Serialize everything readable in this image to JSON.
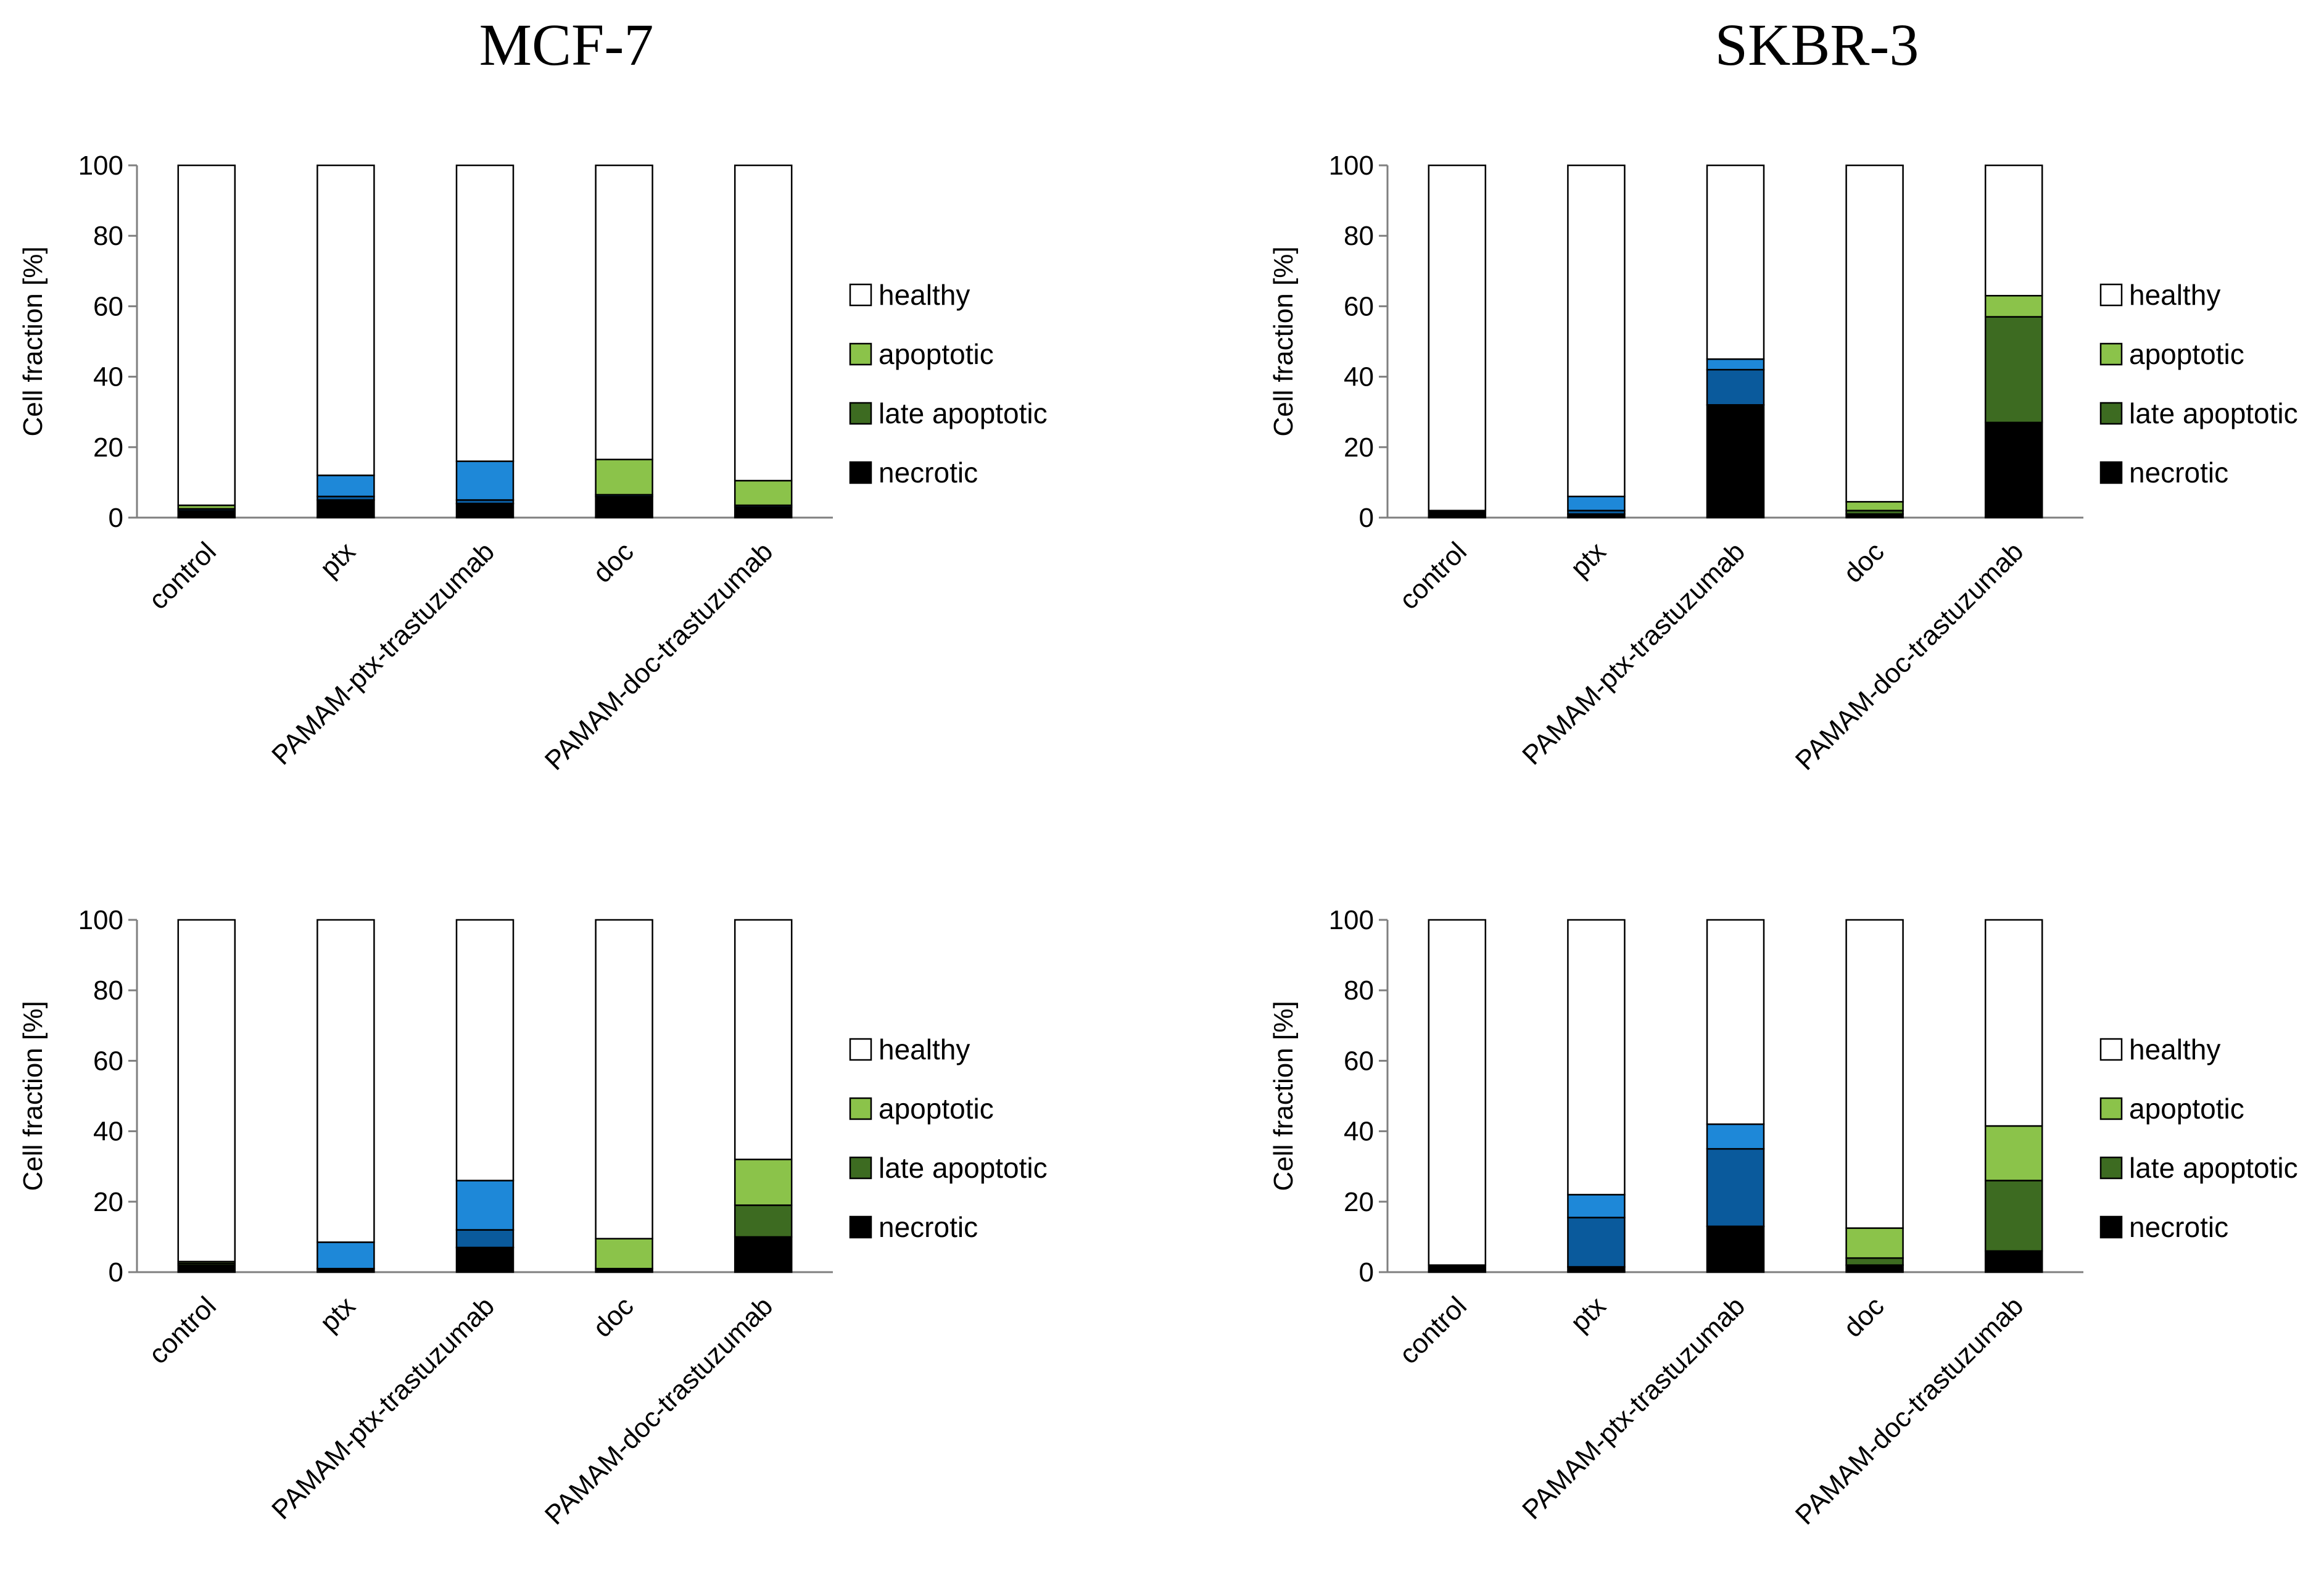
{
  "column_titles": [
    "MCF-7",
    "SKBR-3"
  ],
  "colors": {
    "healthy": "#ffffff",
    "apoptotic": "#8bc34a",
    "late_apoptotic": "#3d6b21",
    "necrotic": "#000000",
    "blue_light": "#1e88d8",
    "blue_dark": "#0a5a9c",
    "axis": "#7f7f7f",
    "outline": "#000000"
  },
  "chart_data": [
    {
      "type": "bar",
      "stacked": true,
      "title": "MCF-7",
      "xlabel": "",
      "ylabel": "Cell fraction [%]",
      "ylim": [
        0,
        100
      ],
      "yticks": [
        0,
        20,
        40,
        60,
        80,
        100
      ],
      "legend_position": "right",
      "categories": [
        "control",
        "ptx",
        "PAMAM-ptx-trastuzumab",
        "doc",
        "PAMAM-doc-trastuzumab"
      ],
      "legend": [
        "healthy",
        "apoptotic",
        "late apoptotic",
        "necrotic"
      ],
      "series": [
        {
          "name": "necrotic",
          "color": "#000000",
          "values": [
            2,
            5,
            4,
            6,
            3
          ]
        },
        {
          "name": "late apoptotic",
          "color": "#0a5a9c",
          "values": [
            0.5,
            1,
            1,
            0.5,
            0.5
          ]
        },
        {
          "name": "apoptotic",
          "color": "#1e88d8",
          "values": [
            0,
            6,
            11,
            0,
            0
          ]
        },
        {
          "name": "apoptotic",
          "color": "#8bc34a",
          "values": [
            1,
            0,
            0,
            10,
            7
          ]
        },
        {
          "name": "healthy",
          "color": "#ffffff",
          "values": [
            96.5,
            88,
            84,
            83.5,
            89.5
          ]
        }
      ]
    },
    {
      "type": "bar",
      "stacked": true,
      "title": "SKBR-3",
      "xlabel": "",
      "ylabel": "Cell fraction [%]",
      "ylim": [
        0,
        100
      ],
      "yticks": [
        0,
        20,
        40,
        60,
        80,
        100
      ],
      "legend_position": "right",
      "categories": [
        "control",
        "ptx",
        "PAMAM-ptx-trastuzumab",
        "doc",
        "PAMAM-doc-trastuzumab"
      ],
      "legend": [
        "healthy",
        "apoptotic",
        "late apoptotic",
        "necrotic"
      ],
      "series": [
        {
          "name": "necrotic",
          "color": "#000000",
          "values": [
            2,
            1,
            32,
            1,
            27
          ]
        },
        {
          "name": "late apoptotic",
          "color": "#0a5a9c",
          "values": [
            0,
            1,
            10,
            0,
            0
          ]
        },
        {
          "name": "late apoptotic",
          "color": "#3d6b21",
          "values": [
            0,
            0,
            0,
            1,
            30
          ]
        },
        {
          "name": "apoptotic",
          "color": "#1e88d8",
          "values": [
            0,
            4,
            3,
            0,
            0
          ]
        },
        {
          "name": "apoptotic",
          "color": "#8bc34a",
          "values": [
            0,
            0,
            0,
            2.5,
            6
          ]
        },
        {
          "name": "healthy",
          "color": "#ffffff",
          "values": [
            98,
            94,
            55,
            95.5,
            37
          ]
        }
      ]
    },
    {
      "type": "bar",
      "stacked": true,
      "title": "",
      "xlabel": "",
      "ylabel": "Cell fraction [%]",
      "ylim": [
        0,
        100
      ],
      "yticks": [
        0,
        20,
        40,
        60,
        80,
        100
      ],
      "legend_position": "right",
      "categories": [
        "control",
        "ptx",
        "PAMAM-ptx-trastuzumab",
        "doc",
        "PAMAM-doc-trastuzumab"
      ],
      "legend": [
        "healthy",
        "apoptotic",
        "late apoptotic",
        "necrotic"
      ],
      "series": [
        {
          "name": "necrotic",
          "color": "#000000",
          "values": [
            2,
            1,
            7,
            1,
            10
          ]
        },
        {
          "name": "late apoptotic",
          "color": "#0a5a9c",
          "values": [
            0,
            0,
            5,
            0,
            0
          ]
        },
        {
          "name": "late apoptotic",
          "color": "#3d6b21",
          "values": [
            0.5,
            0,
            0,
            0,
            9
          ]
        },
        {
          "name": "apoptotic",
          "color": "#1e88d8",
          "values": [
            0,
            7.5,
            14,
            0,
            0
          ]
        },
        {
          "name": "apoptotic",
          "color": "#8bc34a",
          "values": [
            0.5,
            0,
            0,
            8.5,
            13
          ]
        },
        {
          "name": "healthy",
          "color": "#ffffff",
          "values": [
            97,
            91.5,
            74,
            90.5,
            68
          ]
        }
      ]
    },
    {
      "type": "bar",
      "stacked": true,
      "title": "",
      "xlabel": "",
      "ylabel": "Cell fraction [%]",
      "ylim": [
        0,
        100
      ],
      "yticks": [
        0,
        20,
        40,
        60,
        80,
        100
      ],
      "legend_position": "right",
      "categories": [
        "control",
        "ptx",
        "PAMAM-ptx-trastuzumab",
        "doc",
        "PAMAM-doc-trastuzumab"
      ],
      "legend": [
        "healthy",
        "apoptotic",
        "late apoptotic",
        "necrotic"
      ],
      "series": [
        {
          "name": "necrotic",
          "color": "#000000",
          "values": [
            2,
            1.5,
            13,
            2,
            6
          ]
        },
        {
          "name": "late apoptotic",
          "color": "#0a5a9c",
          "values": [
            0,
            14,
            22,
            0,
            0
          ]
        },
        {
          "name": "late apoptotic",
          "color": "#3d6b21",
          "values": [
            0,
            0,
            0,
            2,
            20
          ]
        },
        {
          "name": "apoptotic",
          "color": "#1e88d8",
          "values": [
            0,
            6.5,
            7,
            0,
            0
          ]
        },
        {
          "name": "apoptotic",
          "color": "#8bc34a",
          "values": [
            0,
            0,
            0,
            8.5,
            15.5
          ]
        },
        {
          "name": "healthy",
          "color": "#ffffff",
          "values": [
            98,
            78,
            58,
            87.5,
            58.5
          ]
        }
      ]
    }
  ]
}
